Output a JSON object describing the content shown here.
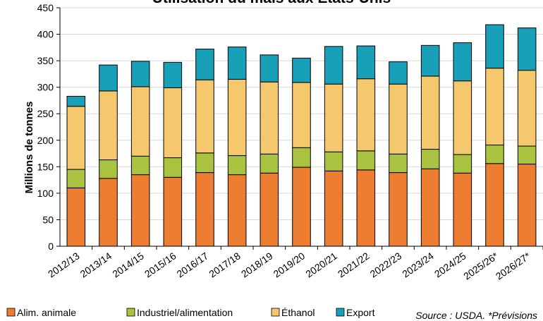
{
  "chart_data": {
    "type": "bar",
    "stacked": true,
    "title": "Utilisation du maïs aux États-Unis",
    "ylabel": "Millions de tonnes",
    "xlabel": "",
    "ylim": [
      0,
      450
    ],
    "yticks": [
      0,
      50,
      100,
      150,
      200,
      250,
      300,
      350,
      400,
      450
    ],
    "categories": [
      "2012/13",
      "2013/14",
      "2014/15",
      "2015/16",
      "2016/17",
      "2017/18",
      "2018/19",
      "2019/20",
      "2020/21",
      "2021/22",
      "2022/23",
      "2023/24",
      "2024/25",
      "2025/26*",
      "2026/27*"
    ],
    "series": [
      {
        "name": "Alim. animale",
        "color": "#ED7D31",
        "values": [
          110,
          128,
          135,
          130,
          139,
          135,
          138,
          149,
          142,
          144,
          139,
          146,
          138,
          156,
          155
        ]
      },
      {
        "name": "Industriel/alimentation",
        "color": "#A9C23F",
        "values": [
          35,
          35,
          35,
          37,
          37,
          36,
          36,
          37,
          36,
          36,
          35,
          37,
          35,
          35,
          34
        ]
      },
      {
        "name": "Éthanol",
        "color": "#F5C86D",
        "values": [
          119,
          130,
          131,
          132,
          138,
          144,
          136,
          123,
          128,
          136,
          132,
          138,
          139,
          145,
          143
        ]
      },
      {
        "name": "Export",
        "color": "#17A0B8",
        "values": [
          19,
          49,
          48,
          48,
          58,
          61,
          51,
          46,
          71,
          62,
          42,
          58,
          72,
          82,
          80
        ]
      }
    ],
    "grid": true,
    "legend_position": "bottom"
  },
  "source_note": "Source : USDA. *Prévisions",
  "icons": {
    "legend_marker": "square-swatch"
  }
}
